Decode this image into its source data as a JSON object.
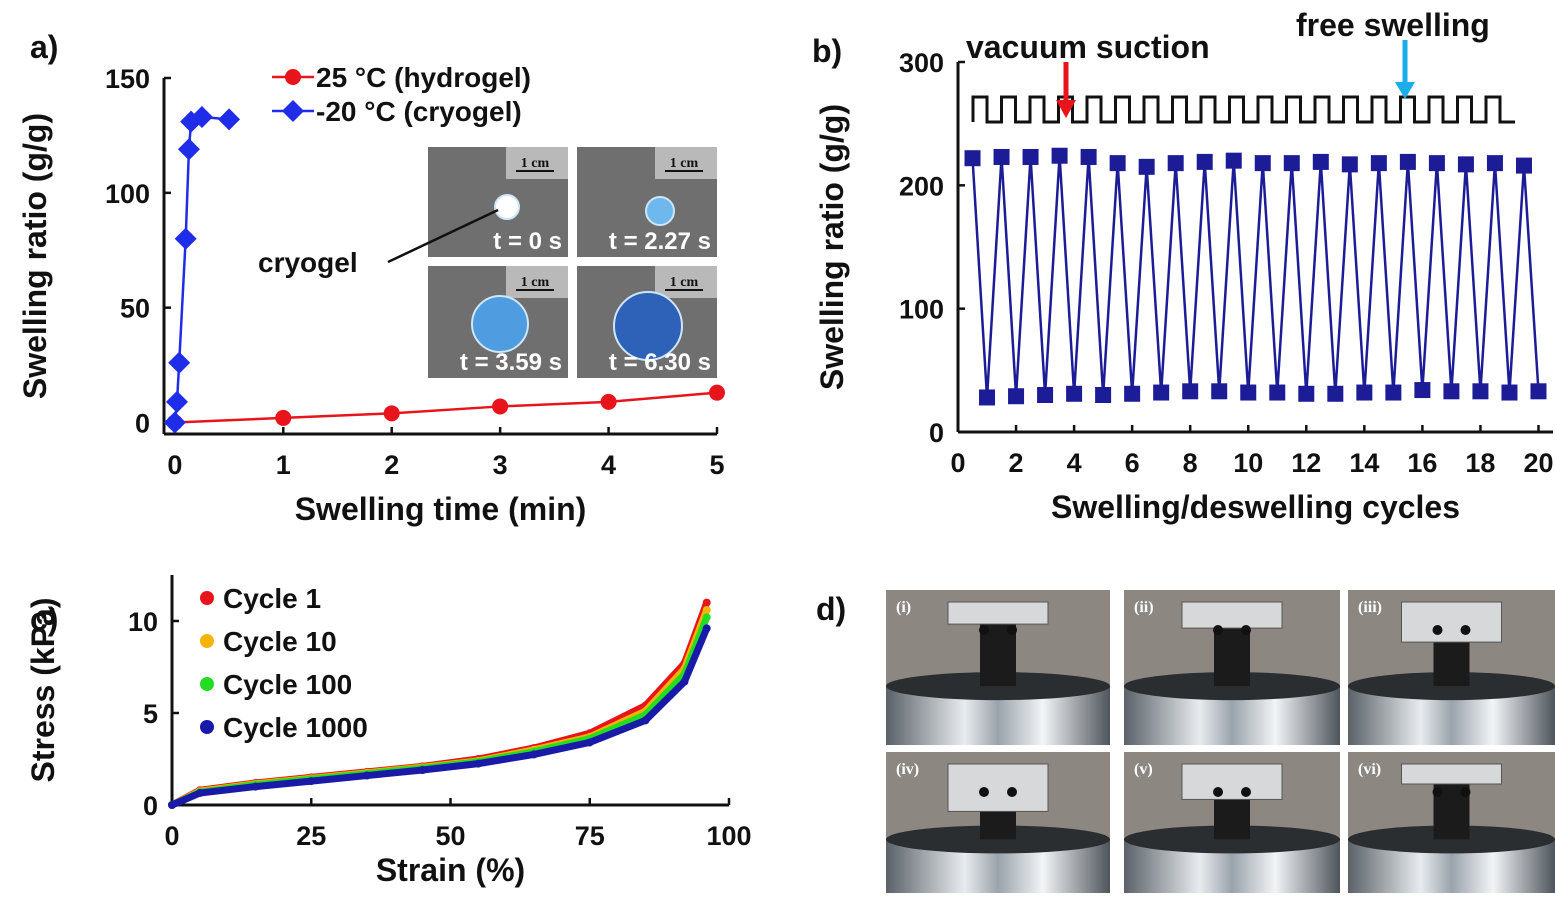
{
  "chart_data": [
    {
      "type": "line",
      "label": "a)",
      "x_label": "Swelling time (min)",
      "y_label": "Swelling ratio (g/g)",
      "xlim": [
        -0.1,
        5
      ],
      "ylim": [
        -5,
        150
      ],
      "xticks": [
        0,
        1,
        2,
        3,
        4,
        5
      ],
      "yticks": [
        0,
        50,
        100,
        150
      ],
      "series": [
        {
          "name": "25 °C (hydrogel)",
          "color": "#e8141c",
          "marker": "circle",
          "x": [
            0,
            1,
            2,
            3,
            4,
            5
          ],
          "values": [
            0,
            2,
            4,
            7,
            9,
            13
          ]
        },
        {
          "name": "-20 °C (cryogel)",
          "color": "#1f2de8",
          "marker": "diamond",
          "x": [
            0,
            0.02,
            0.04,
            0.1,
            0.13,
            0.15,
            0.25,
            0.5
          ],
          "values": [
            0,
            9,
            26,
            80,
            119,
            131,
            133,
            132
          ]
        }
      ],
      "annotation": "cryogel",
      "inset": {
        "scale": "1 cm",
        "times": [
          "t = 0 s",
          "t = 2.27 s",
          "t = 3.59 s",
          "t = 6.30 s"
        ]
      }
    },
    {
      "type": "line",
      "label": "b)",
      "x_label": "Swelling/deswelling cycles",
      "y_label": "Swelling ratio (g/g)",
      "xlim": [
        0,
        20.5
      ],
      "ylim": [
        0,
        300
      ],
      "xticks": [
        0,
        2,
        4,
        6,
        8,
        10,
        12,
        14,
        16,
        18,
        20
      ],
      "yticks": [
        0,
        100,
        200,
        300
      ],
      "x": [
        0.5,
        1,
        1.5,
        2,
        2.5,
        3,
        3.5,
        4,
        4.5,
        5,
        5.5,
        6,
        6.5,
        7,
        7.5,
        8,
        8.5,
        9,
        9.5,
        10,
        10.5,
        11,
        11.5,
        12,
        12.5,
        13,
        13.5,
        14,
        14.5,
        15,
        15.5,
        16,
        16.5,
        17,
        17.5,
        18,
        18.5,
        19,
        19.5,
        20
      ],
      "series": [
        {
          "name": null,
          "color": "#1c1c96",
          "marker": "square",
          "values": [
            222,
            28,
            223,
            29,
            223,
            30,
            224,
            31,
            223,
            30,
            218,
            31,
            215,
            32,
            218,
            33,
            219,
            33,
            220,
            32,
            218,
            32,
            218,
            31,
            219,
            31,
            217,
            32,
            218,
            32,
            219,
            34,
            218,
            33,
            217,
            33,
            218,
            32,
            216,
            33
          ]
        }
      ],
      "annotations": [
        "vacuum suction",
        "free swelling"
      ]
    },
    {
      "type": "line",
      "label": "c)",
      "x_label": "Strain (%)",
      "y_label": "Stress (kPa)",
      "xlim": [
        0,
        100
      ],
      "ylim": [
        0,
        12.5
      ],
      "xticks": [
        0,
        25,
        50,
        75,
        100
      ],
      "yticks": [
        0,
        5,
        10
      ],
      "x": [
        0,
        5,
        15,
        25,
        35,
        45,
        55,
        65,
        75,
        85,
        92,
        96
      ],
      "series": [
        {
          "name": "Cycle 1",
          "color": "#e8141c",
          "marker": "dot",
          "values": [
            0,
            0.8,
            1.2,
            1.5,
            1.8,
            2.1,
            2.5,
            3.1,
            3.9,
            5.4,
            7.7,
            11
          ]
        },
        {
          "name": "Cycle 10",
          "color": "#f5b400",
          "marker": "dot",
          "values": [
            0,
            0.75,
            1.15,
            1.45,
            1.75,
            2.05,
            2.4,
            3.0,
            3.7,
            5.1,
            7.4,
            10.6
          ]
        },
        {
          "name": "Cycle 100",
          "color": "#22dd22",
          "marker": "dot",
          "values": [
            0,
            0.7,
            1.1,
            1.4,
            1.7,
            2.0,
            2.35,
            2.9,
            3.6,
            4.9,
            7.1,
            10.2
          ]
        },
        {
          "name": "Cycle 1000",
          "color": "#1a1aa8",
          "marker": "dot",
          "values": [
            0,
            0.65,
            1.0,
            1.3,
            1.6,
            1.9,
            2.25,
            2.75,
            3.4,
            4.6,
            6.7,
            9.6
          ]
        }
      ]
    }
  ],
  "photo_panel": {
    "label": "d)",
    "panels": [
      "(i)",
      "(ii)",
      "(iii)",
      "(iv)",
      "(v)",
      "(vi)"
    ]
  }
}
